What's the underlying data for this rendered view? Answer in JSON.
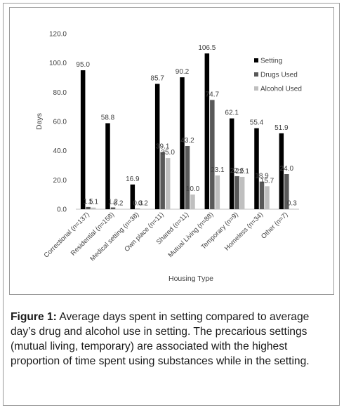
{
  "chart_data": {
    "type": "bar",
    "categories": [
      "Correctional (n=137)",
      "Residential (n=158)",
      "Medical setting (n=38)",
      "Own place (n=11)",
      "Shared (n=11)",
      "Mutual Living (n=88)",
      "Temporary (n=9)",
      "Homeless (n=34)",
      "Other (n=7)"
    ],
    "series": [
      {
        "name": "Setting",
        "color": "#000000",
        "values": [
          95.0,
          58.8,
          16.9,
          85.7,
          90.2,
          106.5,
          62.1,
          55.4,
          51.9
        ],
        "labels": [
          "95.0",
          "58.8",
          "16.9",
          "85.7",
          "90.2",
          "106.5",
          "62.1",
          "55.4",
          "51.9"
        ]
      },
      {
        "name": "Drugs Used",
        "color": "#595959",
        "values": [
          1.5,
          1.2,
          0.3,
          39.1,
          43.2,
          74.7,
          22.6,
          18.9,
          24.0
        ],
        "labels": [
          "1.5",
          "1.2",
          "0.3",
          "39.1",
          "43.2",
          "74.7",
          "22.6",
          "18.9",
          "24.0"
        ]
      },
      {
        "name": "Alcohol Used",
        "color": "#bfbfbf",
        "values": [
          1.1,
          0.2,
          0.2,
          35.0,
          10.0,
          23.1,
          22.1,
          15.7,
          0.3
        ],
        "labels": [
          "1.1",
          "0.2",
          "0.2",
          "35.0",
          "10.0",
          "23.1",
          "22.1",
          "15.7",
          "0.3"
        ]
      }
    ],
    "title": "",
    "xlabel": "Housing Type",
    "ylabel": "Days",
    "ylim": [
      0,
      120
    ],
    "yticks": [
      "0.0",
      "20.0",
      "40.0",
      "60.0",
      "80.0",
      "100.0",
      "120.0"
    ],
    "grid": false,
    "legend_position": "top-right"
  },
  "caption": {
    "label": "Figure 1:",
    "text": " Average days spent in setting compared to average day’s drug and alcohol use in setting. The precarious settings (mutual living, temporary) are associated with the highest proportion of time spent using substances while in the setting."
  }
}
